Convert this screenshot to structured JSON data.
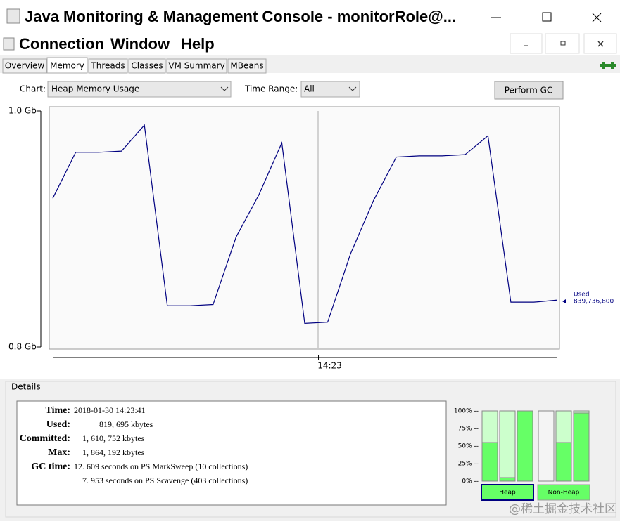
{
  "window": {
    "title": "Java Monitoring & Management Console - monitorRole@..."
  },
  "menu": [
    "Connection",
    "Window",
    "Help"
  ],
  "tabs": [
    "Overview",
    "Memory",
    "Threads",
    "Classes",
    "VM Summary",
    "MBeans"
  ],
  "controls": {
    "chart_label": "Chart:",
    "chart_value": "Heap Memory Usage",
    "time_range_label": "Time Range:",
    "time_range_value": "All",
    "button": "Perform GC"
  },
  "chart_data": {
    "type": "line",
    "categories": [
      null,
      null,
      null,
      null,
      null,
      null,
      null,
      null,
      null,
      null,
      null,
      null,
      "14:23",
      null,
      null,
      null,
      null,
      null,
      null,
      null,
      null,
      null,
      null
    ],
    "series": [
      {
        "name": "Used",
        "color": "#000080",
        "values": [
          0.926,
          0.965,
          0.965,
          0.966,
          0.988,
          0.835,
          0.835,
          0.836,
          0.893,
          0.929,
          0.973,
          0.82,
          0.821,
          0.879,
          0.924,
          0.961,
          0.962,
          0.962,
          0.963,
          0.979,
          0.838,
          0.838,
          0.8397368
        ],
        "value_labels": [
          null,
          null,
          null,
          null,
          null,
          null,
          null,
          null,
          null,
          null,
          null,
          null,
          null,
          null,
          null,
          null,
          null,
          null,
          null,
          null,
          null,
          null,
          "839,736,800"
        ]
      }
    ],
    "ylim": [
      0.8,
      1.0
    ],
    "yticks": [
      {
        "value": 1.0,
        "label": "1.0 Gb"
      },
      {
        "value": 0.8,
        "label": "0.8 Gb"
      }
    ]
  },
  "details": {
    "title": "Details",
    "rows": [
      {
        "label": "Time:",
        "value": "2018-01-30 14:23:41"
      },
      {
        "label": "Used:",
        "value": "819, 695 kbytes"
      },
      {
        "label": "Committed:",
        "value": "1, 610, 752 kbytes"
      },
      {
        "label": "Max:",
        "value": "1, 864, 192 kbytes"
      },
      {
        "label": "GC time:",
        "value": "12. 609  seconds on PS MarkSweep (10 collections)"
      },
      {
        "value": "7. 953  seconds on PS Scavenge (403 collections)"
      }
    ]
  },
  "gauges": {
    "ylim": [
      0,
      100
    ],
    "yticks": [
      {
        "value": 100,
        "label": "100% --"
      },
      {
        "value": 75,
        "label": "75% --"
      },
      {
        "value": 50,
        "label": "50% --"
      },
      {
        "value": 25,
        "label": "25% --"
      },
      {
        "value": 0,
        "label": "0% --"
      }
    ],
    "groups": [
      {
        "name": "Heap",
        "values": [
          55,
          5,
          100
        ]
      },
      {
        "name": "Non-Heap",
        "values": [
          0,
          55,
          97
        ]
      }
    ]
  },
  "watermark": "@稀土掘金技术社区"
}
